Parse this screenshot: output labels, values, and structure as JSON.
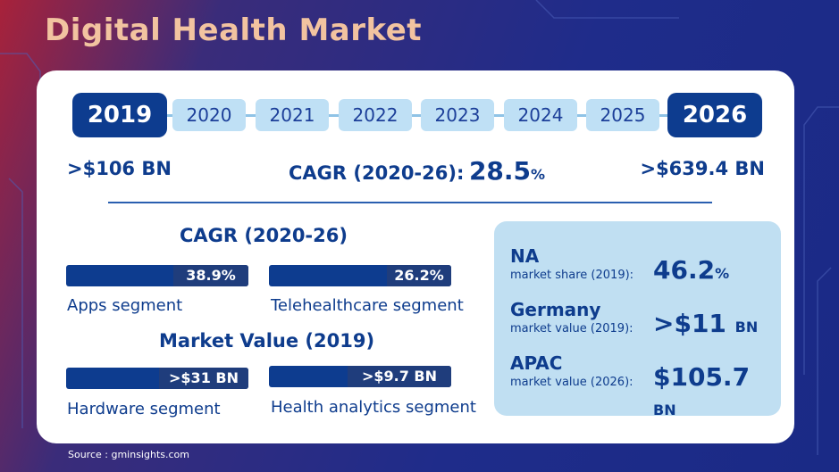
{
  "title": "Digital Health Market",
  "timeline": {
    "start": "2019",
    "years": [
      "2020",
      "2021",
      "2022",
      "2023",
      "2024",
      "2025"
    ],
    "end": "2026"
  },
  "values": {
    "start_value": ">$106 BN",
    "end_value": ">$639.4 BN",
    "cagr_label": "CAGR (2020-26):",
    "cagr_value": "28.5",
    "cagr_unit": "%"
  },
  "cagr_section": {
    "title": "CAGR (2020-26)",
    "segments": [
      {
        "value": "38.9%",
        "label": "Apps segment"
      },
      {
        "value": "26.2%",
        "label": "Telehealthcare segment"
      }
    ]
  },
  "market_value_section": {
    "title": "Market Value (2019)",
    "segments": [
      {
        "value": ">$31 BN",
        "label": "Hardware segment"
      },
      {
        "value": ">$9.7 BN",
        "label": "Health analytics segment"
      }
    ]
  },
  "regions": [
    {
      "name": "NA",
      "desc": "market share (2019):",
      "value": "46.2",
      "unit": "%"
    },
    {
      "name": "Germany",
      "desc": "market value (2019):",
      "value": ">$11",
      "unit": "BN"
    },
    {
      "name": "APAC",
      "desc": "market value (2026):",
      "value": "$105.7",
      "unit": "BN"
    }
  ],
  "source": "Source : gminsights.com"
}
